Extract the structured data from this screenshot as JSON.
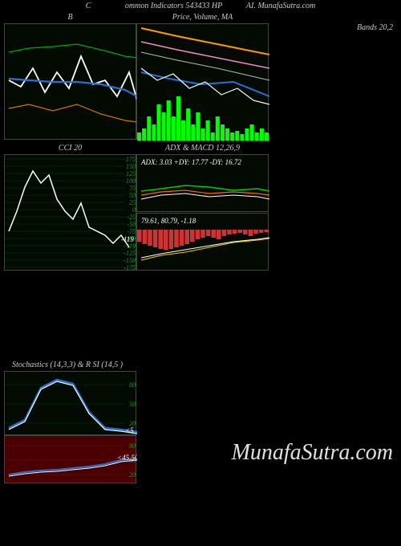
{
  "header": {
    "left": "C",
    "center": "ommon Indicators 543433 HP",
    "right": "AI. MunafaSutra.com"
  },
  "row1": {
    "panelA": {
      "title": "B",
      "width": 165,
      "height": 145,
      "bg": "#020a02",
      "lines": [
        {
          "color": "#ffffff",
          "width": 1.8,
          "pts": [
            [
              5,
              70
            ],
            [
              20,
              78
            ],
            [
              35,
              55
            ],
            [
              50,
              85
            ],
            [
              65,
              60
            ],
            [
              80,
              80
            ],
            [
              95,
              40
            ],
            [
              110,
              75
            ],
            [
              125,
              70
            ],
            [
              140,
              90
            ],
            [
              155,
              60
            ],
            [
              165,
              95
            ]
          ]
        },
        {
          "color": "#2a6fd6",
          "width": 2.2,
          "pts": [
            [
              5,
              68
            ],
            [
              30,
              70
            ],
            [
              60,
              72
            ],
            [
              90,
              72
            ],
            [
              120,
              75
            ],
            [
              150,
              82
            ],
            [
              165,
              90
            ]
          ]
        },
        {
          "color": "#00aa00",
          "width": 1.2,
          "pts": [
            [
              5,
              35
            ],
            [
              30,
              30
            ],
            [
              60,
              28
            ],
            [
              90,
              25
            ],
            [
              120,
              32
            ],
            [
              150,
              40
            ],
            [
              165,
              42
            ]
          ]
        },
        {
          "color": "#cc7700",
          "width": 1.2,
          "pts": [
            [
              5,
              105
            ],
            [
              30,
              100
            ],
            [
              60,
              108
            ],
            [
              90,
              100
            ],
            [
              120,
              112
            ],
            [
              150,
              120
            ],
            [
              165,
              122
            ]
          ]
        }
      ]
    },
    "panelB": {
      "title": "Price,  Volume,  MA",
      "right_title": "Bands 20,2",
      "width": 165,
      "height": 145,
      "bg": "#020a02",
      "lines": [
        {
          "color": "#ff9900",
          "width": 2,
          "pts": [
            [
              5,
              5
            ],
            [
              50,
              15
            ],
            [
              100,
              25
            ],
            [
              165,
              38
            ]
          ]
        },
        {
          "color": "#ee88cc",
          "width": 1.5,
          "pts": [
            [
              5,
              22
            ],
            [
              50,
              32
            ],
            [
              100,
              42
            ],
            [
              165,
              55
            ]
          ]
        },
        {
          "color": "#bbbbbb",
          "width": 1,
          "pts": [
            [
              5,
              35
            ],
            [
              50,
              45
            ],
            [
              100,
              55
            ],
            [
              165,
              70
            ]
          ]
        },
        {
          "color": "#2a6fd6",
          "width": 2,
          "pts": [
            [
              5,
              60
            ],
            [
              40,
              68
            ],
            [
              80,
              75
            ],
            [
              120,
              72
            ],
            [
              165,
              90
            ]
          ]
        },
        {
          "color": "#ffffff",
          "width": 1.2,
          "pts": [
            [
              5,
              55
            ],
            [
              25,
              70
            ],
            [
              45,
              62
            ],
            [
              65,
              80
            ],
            [
              85,
              72
            ],
            [
              105,
              88
            ],
            [
              125,
              80
            ],
            [
              145,
              95
            ],
            [
              165,
              100
            ]
          ]
        }
      ],
      "volume": {
        "color": "#00ff00",
        "bars": [
          10,
          15,
          30,
          20,
          45,
          35,
          50,
          30,
          55,
          25,
          40,
          20,
          35,
          15,
          25,
          10,
          30,
          20,
          15,
          10,
          12,
          8,
          15,
          20,
          10,
          15,
          10
        ]
      }
    }
  },
  "row2": {
    "panelA": {
      "title": "CCI 20",
      "width": 165,
      "height": 145,
      "bg": "#020a02",
      "gridlines": [
        175,
        150,
        125,
        100,
        75,
        50,
        25,
        0,
        -25,
        -50,
        -75,
        -100,
        -119,
        -125,
        -150,
        -175
      ],
      "value_label": "-119",
      "line": {
        "color": "#ffffff",
        "pts": [
          [
            5,
            95
          ],
          [
            15,
            70
          ],
          [
            25,
            40
          ],
          [
            35,
            20
          ],
          [
            45,
            35
          ],
          [
            55,
            25
          ],
          [
            65,
            55
          ],
          [
            75,
            70
          ],
          [
            85,
            80
          ],
          [
            95,
            60
          ],
          [
            105,
            90
          ],
          [
            115,
            95
          ],
          [
            125,
            100
          ],
          [
            135,
            110
          ],
          [
            145,
            100
          ],
          [
            155,
            115
          ]
        ]
      }
    },
    "panelB_top": {
      "title": "ADX  & MACD 12,26,9",
      "label": "ADX: 3.03 +DY: 17.77 -DY: 16.72",
      "width": 165,
      "height": 72,
      "bg": "#020a02",
      "lines": [
        {
          "color": "#00cc00",
          "width": 1.5,
          "pts": [
            [
              5,
              45
            ],
            [
              30,
              42
            ],
            [
              60,
              38
            ],
            [
              90,
              40
            ],
            [
              120,
              44
            ],
            [
              150,
              42
            ],
            [
              165,
              45
            ]
          ]
        },
        {
          "color": "#ff6600",
          "width": 1.2,
          "pts": [
            [
              5,
              50
            ],
            [
              30,
              46
            ],
            [
              60,
              44
            ],
            [
              90,
              48
            ],
            [
              120,
              46
            ],
            [
              150,
              48
            ],
            [
              165,
              50
            ]
          ]
        },
        {
          "color": "#ffffff",
          "width": 1,
          "pts": [
            [
              5,
              55
            ],
            [
              30,
              50
            ],
            [
              60,
              48
            ],
            [
              90,
              52
            ],
            [
              120,
              50
            ],
            [
              150,
              52
            ],
            [
              165,
              55
            ]
          ]
        }
      ]
    },
    "panelB_bot": {
      "label": "79.61, 80.79, -1.18",
      "width": 165,
      "height": 72,
      "bg": "#020a02",
      "hist": {
        "color": "#cc3333",
        "bars": [
          15,
          18,
          20,
          22,
          24,
          25,
          24,
          22,
          20,
          18,
          15,
          12,
          10,
          8,
          10,
          12,
          8,
          6,
          5,
          4,
          6,
          8,
          5,
          4,
          3
        ]
      },
      "lines": [
        {
          "color": "#ffffff",
          "width": 1,
          "pts": [
            [
              5,
              55
            ],
            [
              30,
              50
            ],
            [
              60,
              45
            ],
            [
              90,
              40
            ],
            [
              120,
              35
            ],
            [
              150,
              32
            ],
            [
              165,
              30
            ]
          ]
        },
        {
          "color": "#ffcc00",
          "width": 1,
          "pts": [
            [
              5,
              58
            ],
            [
              30,
              52
            ],
            [
              60,
              48
            ],
            [
              90,
              42
            ],
            [
              120,
              36
            ],
            [
              150,
              33
            ],
            [
              165,
              31
            ]
          ]
        }
      ]
    }
  },
  "row3": {
    "title": "Stochastics                    (14,3,3) & R                     SI                    (14,5                         )",
    "panelA": {
      "width": 165,
      "height": 80,
      "bg": "#020a02",
      "yticks": [
        80,
        50,
        20
      ],
      "val": "<5",
      "lines": [
        {
          "color": "#2a6fd6",
          "width": 2.5,
          "pts": [
            [
              5,
              70
            ],
            [
              25,
              60
            ],
            [
              45,
              20
            ],
            [
              65,
              10
            ],
            [
              85,
              15
            ],
            [
              105,
              50
            ],
            [
              125,
              70
            ],
            [
              145,
              72
            ],
            [
              165,
              75
            ]
          ]
        },
        {
          "color": "#ffffff",
          "width": 1.2,
          "pts": [
            [
              5,
              72
            ],
            [
              25,
              62
            ],
            [
              45,
              22
            ],
            [
              65,
              12
            ],
            [
              85,
              17
            ],
            [
              105,
              52
            ],
            [
              125,
              72
            ],
            [
              145,
              74
            ],
            [
              165,
              77
            ]
          ]
        }
      ]
    },
    "panelB": {
      "width": 165,
      "height": 60,
      "bg": "#4a0000",
      "yticks": [
        80,
        50,
        20
      ],
      "val": "<45.50",
      "lines": [
        {
          "color": "#2a6fd6",
          "width": 2,
          "pts": [
            [
              5,
              48
            ],
            [
              25,
              45
            ],
            [
              45,
              43
            ],
            [
              65,
              42
            ],
            [
              85,
              40
            ],
            [
              105,
              38
            ],
            [
              125,
              35
            ],
            [
              145,
              30
            ],
            [
              165,
              28
            ]
          ]
        },
        {
          "color": "#ffffff",
          "width": 1,
          "pts": [
            [
              5,
              50
            ],
            [
              25,
              47
            ],
            [
              45,
              45
            ],
            [
              65,
              44
            ],
            [
              85,
              42
            ],
            [
              105,
              40
            ],
            [
              125,
              37
            ],
            [
              145,
              32
            ],
            [
              165,
              30
            ]
          ]
        }
      ]
    }
  },
  "watermark": "MunafaSutra.com"
}
